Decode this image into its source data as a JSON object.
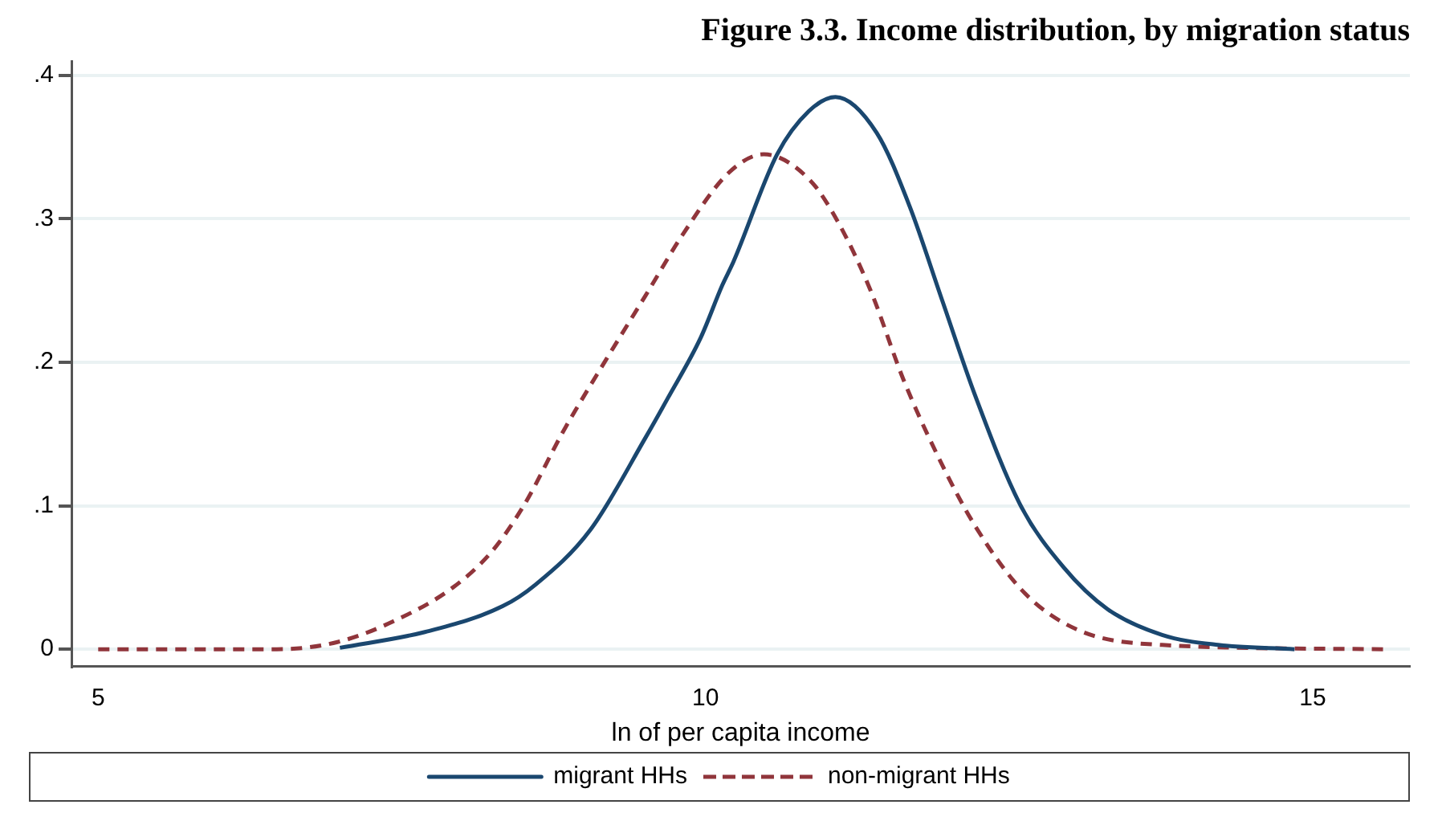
{
  "chart_data": {
    "type": "line",
    "title": "Figure 3.3. Income distribution, by migration status",
    "xlabel": "ln of per capita income",
    "xlim": [
      4.78,
      15.8
    ],
    "xticks": [
      5,
      10,
      15
    ],
    "ylim": [
      -0.012,
      0.41
    ],
    "yticks": [
      {
        "value": 0,
        "label": "0"
      },
      {
        "value": 0.1,
        "label": ".1"
      },
      {
        "value": 0.2,
        "label": ".2"
      },
      {
        "value": 0.3,
        "label": ".3"
      },
      {
        "value": 0.4,
        "label": ".4"
      }
    ],
    "grid": "y",
    "legend": "bottom",
    "marker": "none",
    "series": [
      {
        "name": "migrant HHs",
        "color": "#1a476f",
        "line_style": "solid",
        "x": [
          6.99,
          7.69,
          8.33,
          8.6,
          9.05,
          9.51,
          9.69,
          9.96,
          10.14,
          10.23,
          10.59,
          10.85,
          11.07,
          11.41,
          11.68,
          11.95,
          12.22,
          12.59,
          12.95,
          13.31,
          13.76,
          14.22,
          14.85
        ],
        "values": [
          0.001,
          0.012,
          0.03,
          0.045,
          0.083,
          0.148,
          0.175,
          0.217,
          0.254,
          0.27,
          0.345,
          0.375,
          0.385,
          0.36,
          0.309,
          0.243,
          0.177,
          0.101,
          0.057,
          0.028,
          0.01,
          0.003,
          0
        ]
      },
      {
        "name": "non-migrant HHs",
        "color": "#90353b",
        "line_style": "dashed",
        "x": [
          5,
          6.47,
          6.97,
          7.47,
          7.92,
          8.24,
          8.51,
          8.83,
          9.19,
          9.51,
          9.82,
          10.19,
          10.48,
          10.86,
          11.09,
          11.36,
          11.63,
          11.9,
          12.22,
          12.63,
          13.08,
          13.76,
          15.58
        ],
        "values": [
          0,
          0,
          0.005,
          0.021,
          0.043,
          0.068,
          0.101,
          0.152,
          0.203,
          0.247,
          0.29,
          0.332,
          0.345,
          0.327,
          0.298,
          0.25,
          0.188,
          0.137,
          0.086,
          0.039,
          0.013,
          0.003,
          0
        ]
      }
    ]
  }
}
